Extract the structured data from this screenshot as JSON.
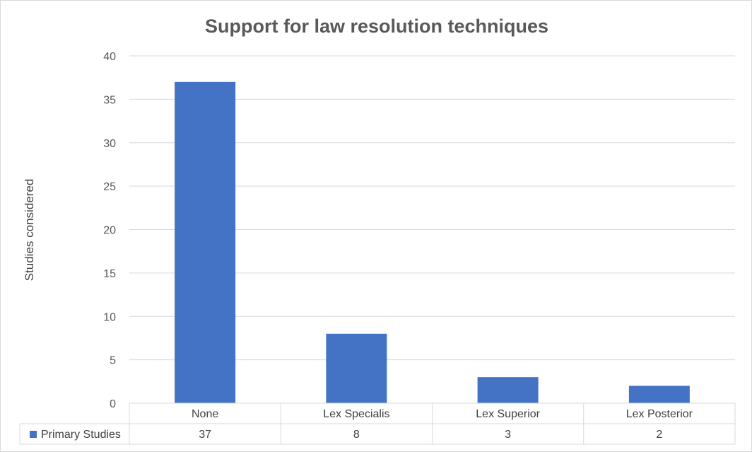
{
  "chart_data": {
    "type": "bar",
    "title": "Support for law resolution techniques",
    "ylabel": "Studies considered",
    "xlabel": "",
    "categories": [
      "None",
      "Lex Specialis",
      "Lex Superior",
      "Lex Posterior"
    ],
    "series": [
      {
        "name": "Primary Studies",
        "values": [
          37,
          8,
          3,
          2
        ],
        "color": "#4472c4"
      }
    ],
    "ylim": [
      0,
      40
    ],
    "yticks": [
      0,
      5,
      10,
      15,
      20,
      25,
      30,
      35,
      40
    ],
    "grid": true,
    "legend": "data-table-bottom-left",
    "data_table": true
  }
}
